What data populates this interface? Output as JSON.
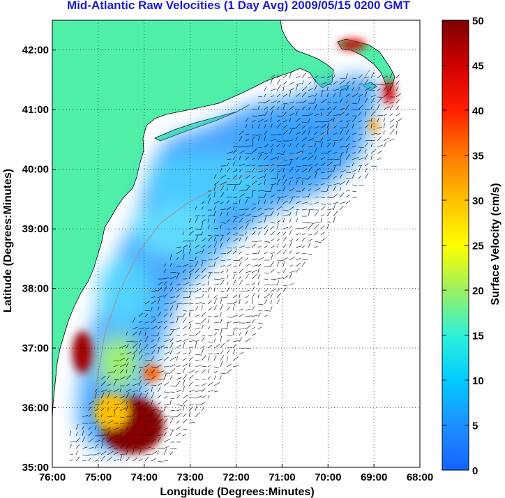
{
  "title": "Mid-Atlantic Raw Velocities (1 Day Avg) 2009/05/15 0200 GMT",
  "chart_data": {
    "type": "heatmap",
    "title": "Mid-Atlantic Raw Velocities (1 Day Avg) 2009/05/15 0200 GMT",
    "xlabel": "Longitude (Degrees:Minutes)",
    "ylabel": "Latitude (Degrees:Minutes)",
    "x_ticks": [
      "76:00",
      "75:00",
      "74:00",
      "73:00",
      "72:00",
      "71:00",
      "70:00",
      "69:00",
      "68:00"
    ],
    "y_ticks": [
      "35:00",
      "36:00",
      "37:00",
      "38:00",
      "39:00",
      "40:00",
      "41:00",
      "42:00"
    ],
    "xlim": [
      -76,
      -68
    ],
    "ylim": [
      35,
      42.5
    ],
    "grid": true,
    "colorbar": {
      "label": "Surface Velocity (cm/s)",
      "range": [
        0,
        50
      ],
      "ticks": [
        "0",
        "5",
        "10",
        "15",
        "20",
        "25",
        "30",
        "35",
        "40",
        "45",
        "50"
      ]
    },
    "colors": {
      "land": "#4fefa8",
      "ocean": "#ffffff",
      "title": "#1a1ad6"
    }
  }
}
